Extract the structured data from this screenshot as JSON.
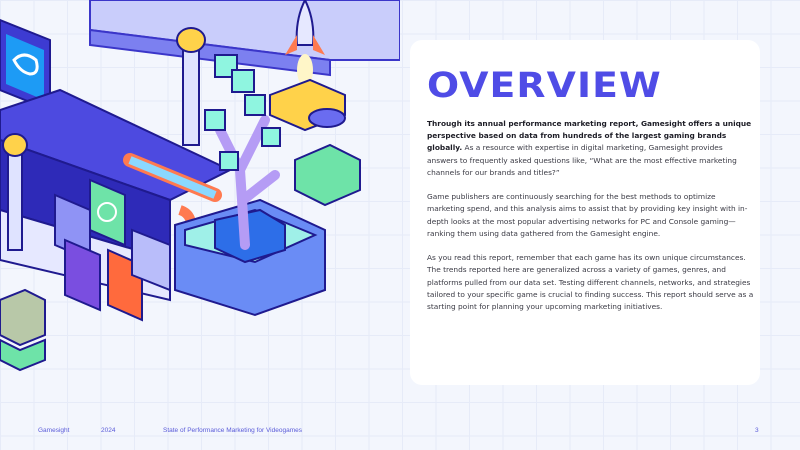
{
  "card": {
    "title": "OVERVIEW",
    "paragraphs": [
      {
        "bold": "Through its annual performance marketing report, Gamesight offers a unique perspective based on data from hundreds of the largest gaming brands globally.",
        "text": " As a resource with expertise in digital marketing, Gamesight provides answers to frequently asked questions like, “What are the most effective marketing channels for our brands and titles?”"
      },
      {
        "text": "Game publishers are continuously searching for the best methods to optimize marketing spend, and this analysis aims to assist that by providing key insight with in-depth looks at the most popular advertising networks for PC and Console gaming—ranking them using data gathered from the Gamesight engine."
      },
      {
        "text": "As you read this report, remember that each game has its own unique circumstances. The trends reported here are generalized across a variety of games, genres, and platforms pulled from our data set. Testing different channels, networks, and strategies tailored to your specific game is crucial to finding success. This report should serve as a starting point for planning your upcoming marketing initiatives."
      }
    ]
  },
  "footer": {
    "brand": "Gamesight",
    "year": "2024",
    "report_title": "State of Performance Marketing for Videogames",
    "page_number": "3"
  },
  "colors": {
    "accent": "#4f4ce6",
    "background": "#f3f6fd"
  }
}
